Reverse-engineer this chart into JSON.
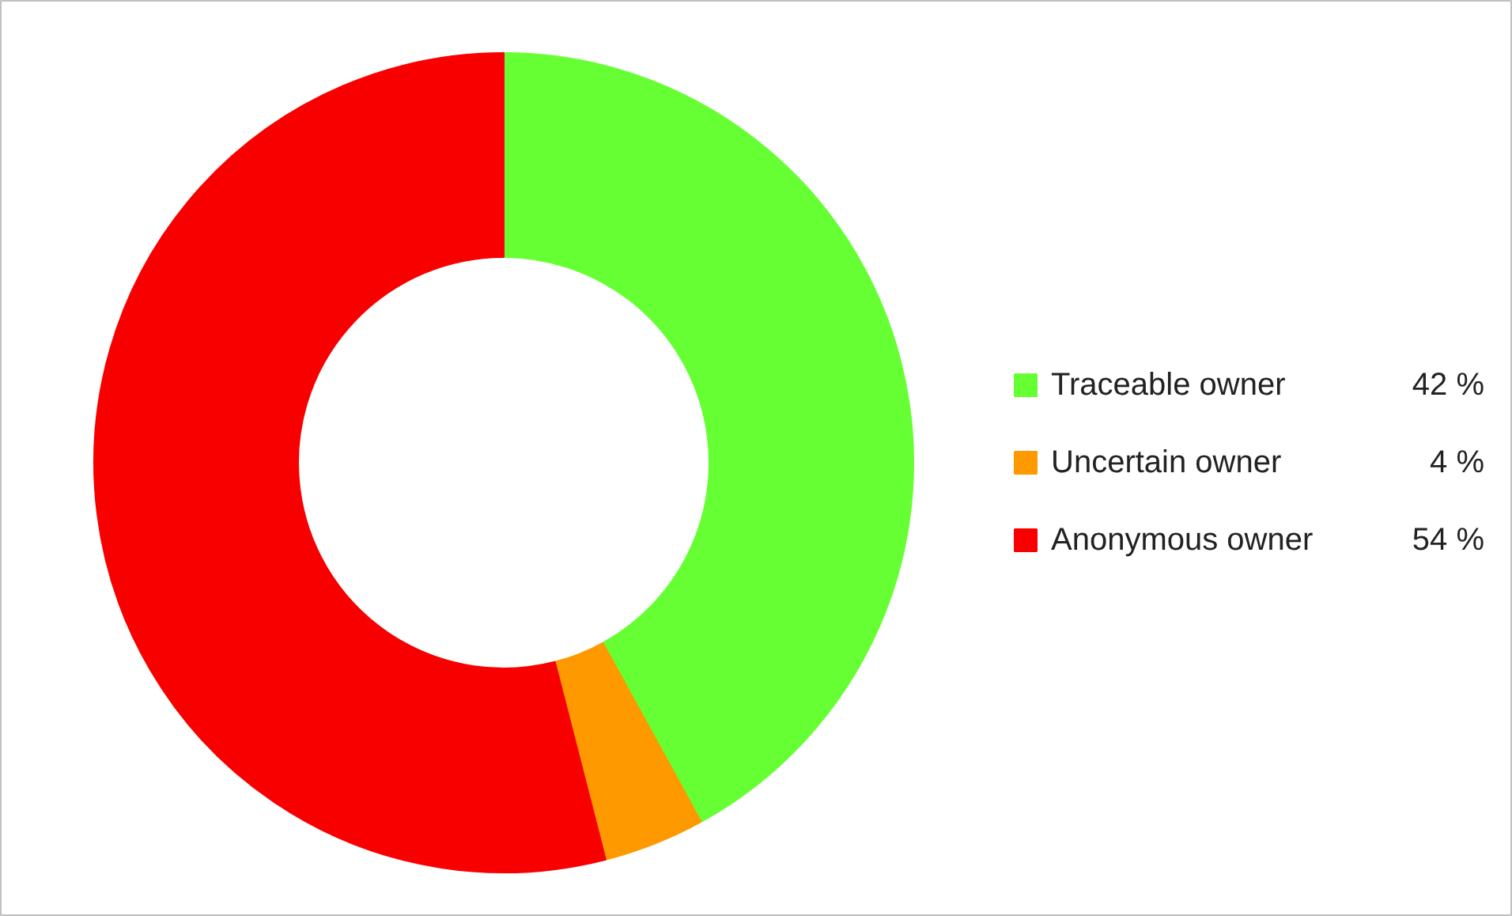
{
  "chart_data": {
    "type": "donut",
    "categories": [
      "Traceable owner",
      "Uncertain owner",
      "Anonymous owner"
    ],
    "values": [
      42,
      4,
      54
    ],
    "colors": [
      "#66ff33",
      "#ff9900",
      "#f80000"
    ],
    "value_labels": [
      "42 %",
      "4 %",
      "54 %"
    ],
    "legend": "right"
  }
}
